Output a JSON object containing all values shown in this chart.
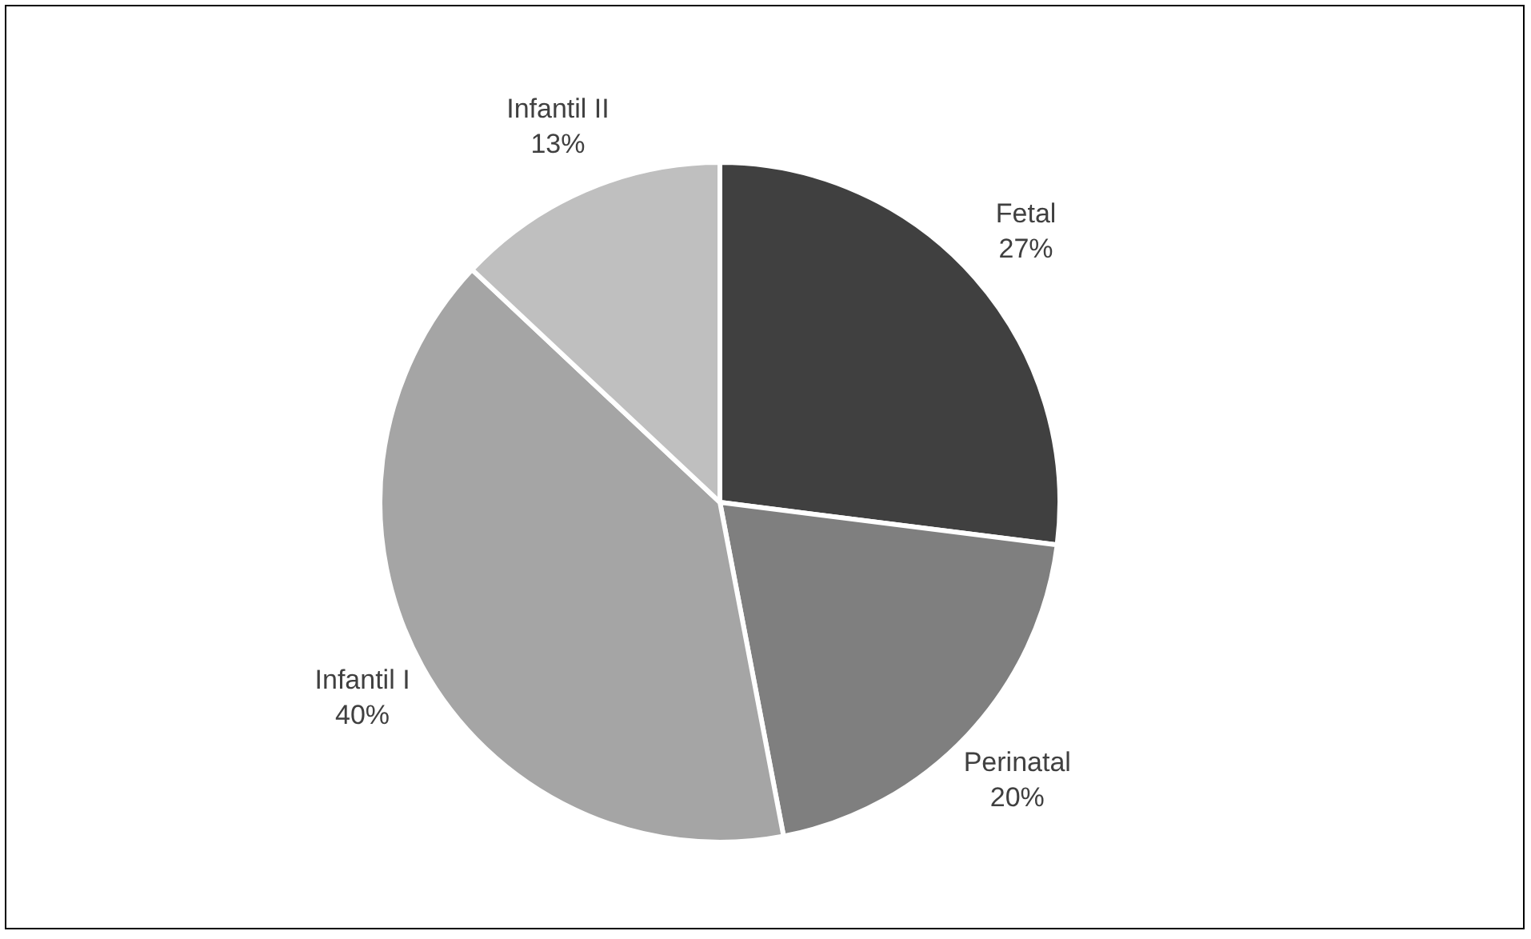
{
  "chart_data": {
    "type": "pie",
    "categories": [
      "Fetal",
      "Perinatal",
      "Infantil I",
      "Infantil II"
    ],
    "values": [
      27,
      20,
      40,
      13
    ],
    "colors": [
      "#404040",
      "#7f7f7f",
      "#a5a5a5",
      "#bfbfbf"
    ],
    "value_labels": [
      "27%",
      "20%",
      "40%",
      "13%"
    ],
    "legend": false
  }
}
